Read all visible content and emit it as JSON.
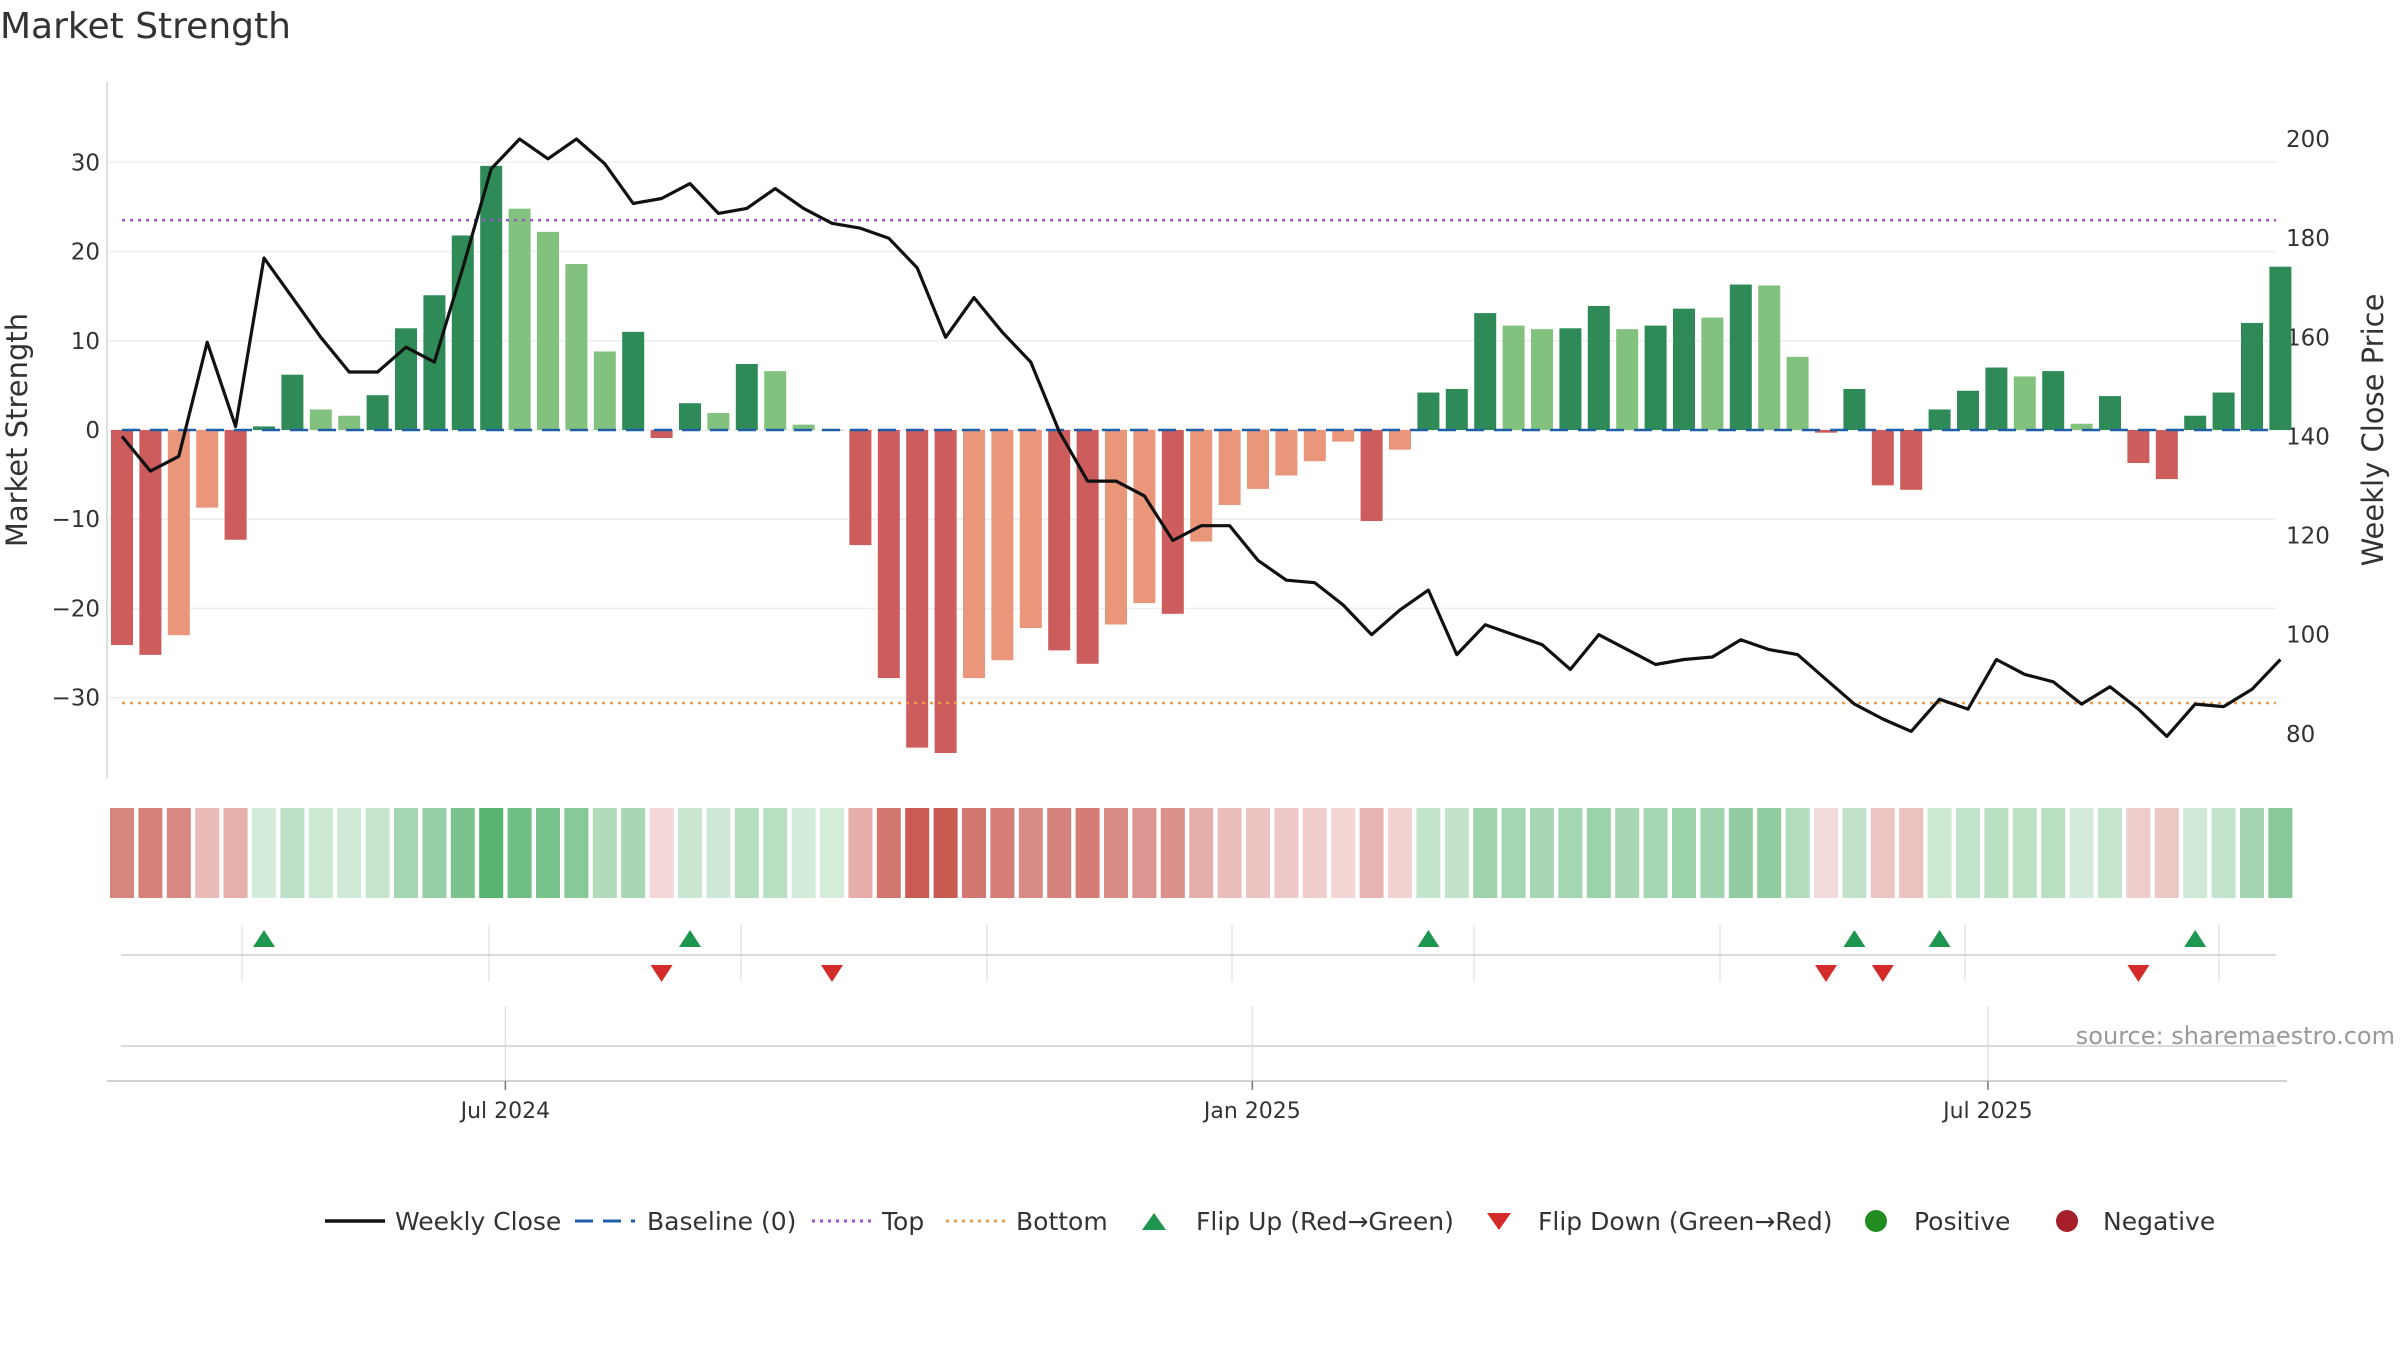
{
  "title": "Market Strength",
  "y_left_label": "Market Strength",
  "y_right_label": "Weekly Close Price",
  "source": "source: sharemaestro.com",
  "colors": {
    "price_line": "#111111",
    "baseline": "#1f5fa8",
    "top": "#9a55c8",
    "bottom": "#ef9b45",
    "pos_strong": "#2e8b57",
    "pos_light": "#82c17e",
    "neg_strong": "#cd5c5c",
    "neg_light": "#e9967a",
    "flip_up": "#1e9650",
    "flip_down": "#d42a2a",
    "dot_positive": "#228b22",
    "dot_negative": "#a52028"
  },
  "legend": [
    {
      "label": "Weekly Close",
      "kind": "line"
    },
    {
      "label": "Baseline (0)",
      "kind": "dash"
    },
    {
      "label": "Top",
      "kind": "dot-top"
    },
    {
      "label": "Bottom",
      "kind": "dot-bottom"
    },
    {
      "label": "Flip Up (Red→Green)",
      "kind": "tri-up"
    },
    {
      "label": "Flip Down (Green→Red)",
      "kind": "tri-down"
    },
    {
      "label": "Positive",
      "kind": "circle-pos"
    },
    {
      "label": "Negative",
      "kind": "circle-neg"
    }
  ],
  "chart_data": {
    "type": "bar",
    "x_axis_ticks": [
      "Jul 2024",
      "Jan 2025",
      "Jul 2025"
    ],
    "x_axis_tick_weeks": [
      13.5,
      39.8,
      65.7
    ],
    "y_left_range": [
      -39,
      39
    ],
    "y_left_ticks": [
      -30,
      -20,
      -10,
      0,
      10,
      20,
      30
    ],
    "y_right_range": [
      71.1,
      211.5
    ],
    "y_right_ticks": [
      80,
      100,
      120,
      140,
      160,
      180,
      200
    ],
    "top_level": 23.5,
    "bottom_level": -30.6,
    "baseline": 0,
    "series": [
      {
        "name": "Market Strength",
        "values": [
          -24.1,
          -25.2,
          -23.0,
          -8.7,
          -12.3,
          0.4,
          6.2,
          2.3,
          1.6,
          3.9,
          11.4,
          15.1,
          21.8,
          29.6,
          24.8,
          22.2,
          18.6,
          8.8,
          11.0,
          -0.9,
          3.0,
          1.9,
          7.4,
          6.6,
          0.6,
          0.0,
          -12.9,
          -27.8,
          -35.6,
          -36.2,
          -27.8,
          -25.8,
          -22.2,
          -24.7,
          -26.2,
          -21.8,
          -19.4,
          -20.6,
          -12.5,
          -8.4,
          -6.6,
          -5.1,
          -3.5,
          -1.3,
          -10.2,
          -2.2,
          4.2,
          4.6,
          13.1,
          11.7,
          11.3,
          11.4,
          13.9,
          11.3,
          11.7,
          13.6,
          12.6,
          16.3,
          16.2,
          8.2,
          -0.3,
          4.6,
          -6.2,
          -6.7,
          2.3,
          4.4,
          7.0,
          6.0,
          6.6,
          0.7,
          3.8,
          -3.7,
          -5.5,
          1.6,
          4.2,
          12.0,
          18.3
        ]
      },
      {
        "name": "Weekly Close",
        "values": [
          140,
          133,
          136,
          159,
          142,
          176,
          168,
          160,
          153,
          153,
          158,
          155,
          174,
          194,
          200,
          196,
          200,
          195,
          187,
          188,
          191,
          185,
          186,
          190,
          186,
          183,
          182,
          180,
          174,
          160,
          168,
          161,
          155,
          141,
          131,
          131,
          128,
          119,
          122,
          122,
          115,
          111,
          110.5,
          106,
          100,
          105,
          109,
          96,
          102,
          100,
          98,
          93,
          100,
          97,
          94,
          95,
          95.5,
          99,
          97,
          96,
          91,
          86,
          83,
          80.5,
          87,
          85,
          95,
          92,
          90.5,
          86,
          89.5,
          85,
          79.5,
          86,
          85.5,
          89,
          95
        ]
      }
    ],
    "flip_up_weeks": [
      5,
      20,
      46,
      61,
      64,
      73
    ],
    "flip_down_weeks": [
      19,
      25,
      60,
      62,
      71
    ]
  }
}
